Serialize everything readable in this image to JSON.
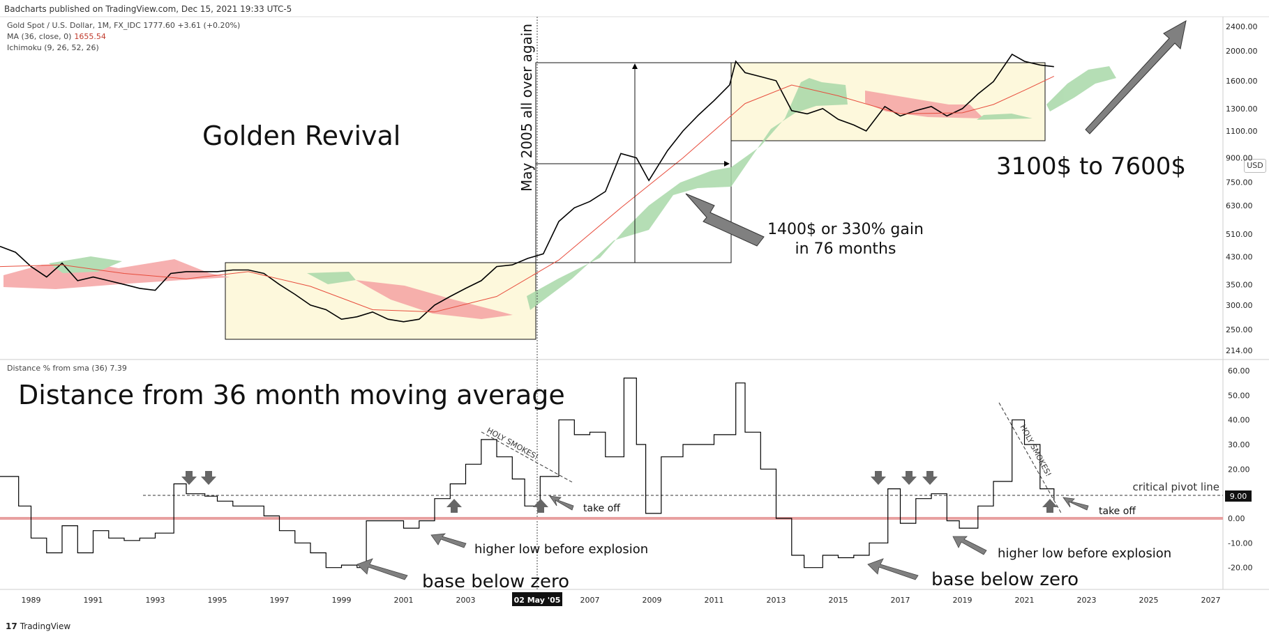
{
  "header": {
    "published": "Badcharts published on TradingView.com, Dec 15, 2021 19:33 UTC-5"
  },
  "legend": {
    "symbol": "Gold Spot / U.S. Dollar, 1M, FX_IDC",
    "symbol_value": "1777.60  +3.61 (+0.20%)",
    "ma_label": "MA (36, close, 0)",
    "ma_value": "1655.54",
    "ichimoku_label": "Ichimoku (9, 26, 52, 26)",
    "osc_label": "Distance % from sma (36)",
    "osc_value": "7.39"
  },
  "currency_button": "USD",
  "footer": {
    "brand": "TradingView"
  },
  "colors": {
    "price": "#000000",
    "ma": "#e74c3c",
    "cloud_bull": "#a8d8a8",
    "cloud_bear": "#f5a3a3",
    "box_fill": "#fdf8dc",
    "zero_line": "#e8a0a0",
    "arrow": "#7a7a7a"
  },
  "chart_data": [
    {
      "type": "line",
      "title": "Golden Revival",
      "scale": "log",
      "ylim": [
        214,
        2400
      ],
      "xlim": [
        1988,
        2028
      ],
      "y_ticks": [
        "2400.00",
        "2000.00",
        "1600.00",
        "1300.00",
        "1100.00",
        "900.00",
        "750.00",
        "630.00",
        "510.00",
        "430.00",
        "350.00",
        "300.00",
        "250.00",
        "214.00"
      ],
      "x_ticks": [
        "1989",
        "1991",
        "1993",
        "1995",
        "1997",
        "1999",
        "2001",
        "2003",
        "02 May '05",
        "2007",
        "2009",
        "2011",
        "2013",
        "2015",
        "2017",
        "2019",
        "2021",
        "2023",
        "2025",
        "2027"
      ],
      "series": [
        {
          "name": "Gold Spot / U.S. Dollar",
          "x": [
            1988.0,
            1988.5,
            1989.0,
            1989.5,
            1990.0,
            1990.5,
            1991.0,
            1991.5,
            1992.0,
            1992.5,
            1993.0,
            1993.5,
            1994.0,
            1994.5,
            1995.0,
            1995.5,
            1996.0,
            1996.5,
            1997.0,
            1997.5,
            1998.0,
            1998.5,
            1999.0,
            1999.5,
            2000.0,
            2000.5,
            2001.0,
            2001.5,
            2002.0,
            2002.5,
            2003.0,
            2003.5,
            2004.0,
            2004.5,
            2005.0,
            2005.5,
            2006.0,
            2006.5,
            2007.0,
            2007.5,
            2008.0,
            2008.5,
            2008.9,
            2009.5,
            2010.0,
            2010.5,
            2011.0,
            2011.5,
            2011.7,
            2012.0,
            2012.5,
            2013.0,
            2013.5,
            2014.0,
            2014.5,
            2015.0,
            2015.5,
            2015.9,
            2016.5,
            2017.0,
            2017.5,
            2018.0,
            2018.5,
            2019.0,
            2019.5,
            2020.0,
            2020.6,
            2021.0,
            2021.5,
            2021.95
          ],
          "y": [
            465,
            445,
            400,
            370,
            410,
            360,
            370,
            360,
            350,
            340,
            335,
            380,
            385,
            385,
            385,
            390,
            390,
            380,
            350,
            325,
            300,
            290,
            270,
            275,
            285,
            270,
            265,
            270,
            300,
            320,
            340,
            360,
            400,
            405,
            425,
            440,
            560,
            620,
            650,
            700,
            930,
            900,
            760,
            950,
            1100,
            1240,
            1380,
            1550,
            1850,
            1700,
            1650,
            1600,
            1280,
            1250,
            1300,
            1200,
            1150,
            1100,
            1320,
            1230,
            1280,
            1320,
            1230,
            1300,
            1450,
            1590,
            1950,
            1850,
            1800,
            1777.6
          ]
        },
        {
          "name": "MA (36, close, 0)",
          "x": [
            1988.0,
            1990.0,
            1992.0,
            1994.0,
            1996.0,
            1998.0,
            2000.0,
            2002.0,
            2004.0,
            2006.0,
            2008.0,
            2010.0,
            2012.0,
            2013.5,
            2015.0,
            2017.0,
            2019.0,
            2020.0,
            2021.0,
            2021.95
          ],
          "y": [
            400,
            405,
            380,
            365,
            385,
            345,
            290,
            285,
            320,
            420,
            620,
            900,
            1350,
            1550,
            1430,
            1250,
            1260,
            1340,
            1490,
            1655.54
          ]
        }
      ],
      "annotations": [
        "May 2005 all over again",
        "1400$ or 330% gain",
        "in 76 months",
        "3100$ to 7600$"
      ]
    },
    {
      "type": "line",
      "title": "Distance from 36 month moving average",
      "ylim": [
        -23,
        62
      ],
      "y_ticks": [
        "60.00",
        "50.00",
        "40.00",
        "30.00",
        "20.00",
        "10.00",
        "0.00",
        "-10.00",
        "-20.00"
      ],
      "series": [
        {
          "name": "Distance % from sma (36)",
          "x": [
            1988.0,
            1988.6,
            1989.0,
            1989.5,
            1990.0,
            1990.5,
            1991.0,
            1991.5,
            1992.0,
            1992.5,
            1993.0,
            1993.6,
            1994.0,
            1994.6,
            1995.0,
            1995.5,
            1996.0,
            1996.5,
            1997.0,
            1997.5,
            1998.0,
            1998.5,
            1999.0,
            1999.5,
            1999.8,
            2000.3,
            2001.0,
            2001.5,
            2002.0,
            2002.5,
            2003.0,
            2003.5,
            2004.0,
            2004.5,
            2004.9,
            2005.4,
            2006.0,
            2006.5,
            2007.0,
            2007.5,
            2008.1,
            2008.5,
            2008.8,
            2009.3,
            2010.0,
            2010.5,
            2011.0,
            2011.7,
            2012.0,
            2012.5,
            2013.0,
            2013.5,
            2013.9,
            2014.5,
            2015.0,
            2015.5,
            2016.0,
            2016.6,
            2017.0,
            2017.5,
            2018.0,
            2018.5,
            2018.9,
            2019.5,
            2020.0,
            2020.6,
            2021.0,
            2021.5,
            2021.95
          ],
          "y": [
            17,
            5,
            -8,
            -14,
            -3,
            -14,
            -5,
            -8,
            -9,
            -8,
            -6,
            14,
            10,
            9,
            7,
            5,
            5,
            1,
            -5,
            -10,
            -14,
            -20,
            -19,
            -20,
            -1,
            -1,
            -4,
            -1,
            8,
            14,
            22,
            32,
            25,
            16,
            5,
            17,
            40,
            34,
            35,
            25,
            57,
            30,
            2,
            25,
            30,
            30,
            34,
            55,
            35,
            20,
            0,
            -15,
            -20,
            -15,
            -16,
            -15,
            -10,
            12,
            -2,
            8,
            10,
            -1,
            -4,
            5,
            15,
            40,
            30,
            12,
            7.39
          ]
        }
      ],
      "reference_lines": [
        {
          "value": 9.0,
          "label": "critical pivot line",
          "style": "dashed"
        },
        {
          "value": 0.0,
          "style": "solid"
        }
      ],
      "annotations": [
        "HOLY SMOKES!",
        "HOLY SMOKES!",
        "take off",
        "take off",
        "higher low before explosion",
        "higher low before explosion",
        "base below zero",
        "base below zero"
      ],
      "price_label": "9.00"
    }
  ]
}
